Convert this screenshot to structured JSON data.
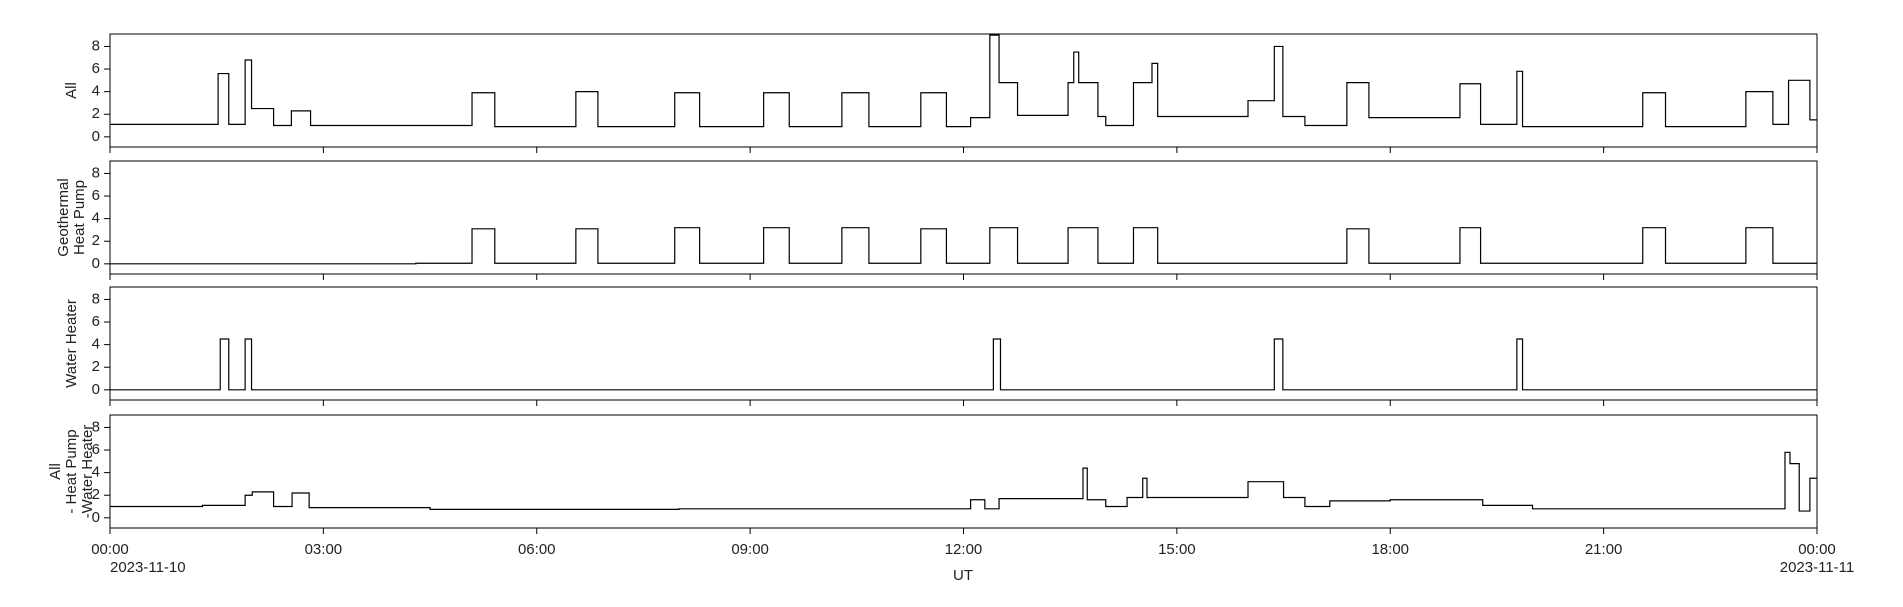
{
  "chart_data": {
    "type": "line",
    "step": "post",
    "xlabel": "UT",
    "xlim": [
      0,
      24
    ],
    "xticks": [
      {
        "value": 0,
        "label": "00:00"
      },
      {
        "value": 3,
        "label": "03:00"
      },
      {
        "value": 6,
        "label": "06:00"
      },
      {
        "value": 9,
        "label": "09:00"
      },
      {
        "value": 12,
        "label": "12:00"
      },
      {
        "value": 15,
        "label": "15:00"
      },
      {
        "value": 18,
        "label": "18:00"
      },
      {
        "value": 21,
        "label": "21:00"
      },
      {
        "value": 24,
        "label": "00:00"
      }
    ],
    "x_date_labels": [
      {
        "value": 0,
        "label": "2023-11-10"
      },
      {
        "value": 24,
        "label": "2023-11-11"
      }
    ],
    "ylim": [
      -0.9,
      9.1
    ],
    "yticks": [
      0,
      2,
      4,
      6,
      8
    ],
    "series": [
      {
        "name": [
          "All"
        ],
        "color": "#000000",
        "x": [
          0,
          1.52,
          1.67,
          1.9,
          1.99,
          2.3,
          2.55,
          2.82,
          5.09,
          5.41,
          6.55,
          6.86,
          7.94,
          8.29,
          9.19,
          9.55,
          10.29,
          10.67,
          11.4,
          11.76,
          12.1,
          12.37,
          12.5,
          12.76,
          13.47,
          13.55,
          13.62,
          13.89,
          14.0,
          14.39,
          14.65,
          14.73,
          16.0,
          16.37,
          16.49,
          16.8,
          17.39,
          17.7,
          18.98,
          19.27,
          19.78,
          19.86,
          21.55,
          21.87,
          23.0,
          23.38,
          23.6,
          23.9,
          24
        ],
        "values": [
          1.1,
          5.6,
          1.1,
          6.8,
          2.5,
          1.0,
          2.3,
          1.0,
          3.9,
          0.9,
          4.0,
          0.9,
          3.9,
          0.9,
          3.9,
          0.9,
          3.9,
          0.9,
          3.9,
          0.9,
          1.7,
          9.0,
          4.8,
          1.9,
          4.8,
          7.5,
          4.8,
          1.8,
          1.0,
          4.8,
          6.5,
          1.8,
          3.2,
          8.0,
          1.8,
          1.0,
          4.8,
          1.7,
          4.7,
          1.1,
          5.8,
          0.9,
          3.9,
          0.9,
          4.0,
          1.1,
          5.0,
          1.5,
          1.5
        ]
      },
      {
        "name": [
          "Geothermal",
          "Heat Pump"
        ],
        "color": "#000000",
        "x": [
          0,
          4.3,
          5.09,
          5.41,
          6.55,
          6.86,
          7.94,
          8.29,
          9.19,
          9.55,
          10.29,
          10.67,
          11.4,
          11.76,
          12.37,
          12.76,
          13.47,
          13.89,
          14.39,
          14.73,
          17.39,
          17.7,
          18.98,
          19.27,
          21.55,
          21.87,
          23.0,
          23.38,
          24
        ],
        "values": [
          0,
          0.05,
          3.1,
          0.05,
          3.1,
          0.05,
          3.2,
          0.05,
          3.2,
          0.05,
          3.2,
          0.05,
          3.1,
          0.05,
          3.2,
          0.05,
          3.2,
          0.05,
          3.2,
          0.05,
          3.1,
          0.05,
          3.2,
          0.05,
          3.2,
          0.05,
          3.2,
          0.05,
          0.05
        ]
      },
      {
        "name": [
          "Water Heater"
        ],
        "color": "#000000",
        "x": [
          0,
          1.55,
          1.67,
          1.9,
          1.99,
          12.42,
          12.52,
          16.37,
          16.49,
          19.78,
          19.86,
          24
        ],
        "values": [
          0,
          4.5,
          0,
          4.5,
          0,
          4.5,
          0,
          4.5,
          0,
          4.5,
          0,
          0
        ]
      },
      {
        "name": [
          "All",
          "- Heat Pump",
          "-Water Heater"
        ],
        "color": "#000000",
        "x": [
          0,
          1.3,
          1.9,
          2.0,
          2.3,
          2.56,
          2.8,
          4.5,
          8.0,
          12.1,
          12.3,
          12.5,
          13.68,
          13.74,
          14.0,
          14.3,
          14.52,
          14.58,
          16.0,
          16.5,
          16.8,
          17.15,
          18.0,
          19.3,
          20.0,
          23.55,
          23.62,
          23.75,
          23.9,
          24
        ],
        "values": [
          1.0,
          1.1,
          2.0,
          2.3,
          1.0,
          2.2,
          0.9,
          0.75,
          0.8,
          1.6,
          0.8,
          1.7,
          4.4,
          1.6,
          1.0,
          1.8,
          3.5,
          1.8,
          3.2,
          1.8,
          1.0,
          1.5,
          1.6,
          1.1,
          0.8,
          5.8,
          4.8,
          0.6,
          3.5,
          3.5
        ]
      }
    ]
  }
}
